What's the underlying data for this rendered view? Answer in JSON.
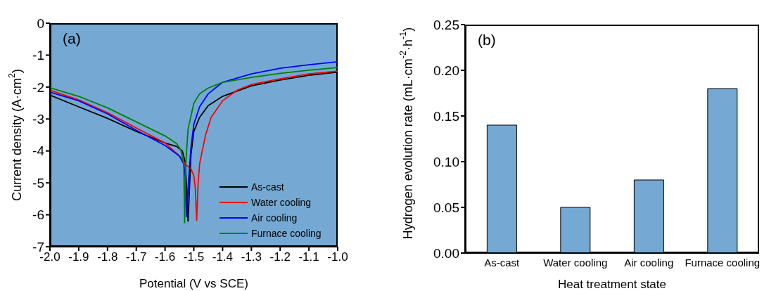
{
  "chart_data": [
    {
      "type": "line",
      "xlabel": "Potential (V vs SCE)",
      "ylabel": "Current density (A·cm$^{2}$)",
      "annotations": [
        "(a)"
      ],
      "xlim": [
        -2.0,
        -1.0
      ],
      "xticks": [
        {
          "value": -2.0,
          "label": "-2.0"
        },
        -1.9,
        -1.8,
        -1.7,
        -1.6,
        -1.5,
        -1.4,
        -1.3,
        -1.2,
        -1.1,
        {
          "value": -1.0,
          "label": "-1.0"
        }
      ],
      "ylim": [
        -7,
        0
      ],
      "yticks": [
        -7,
        -6,
        -5,
        -4,
        -3,
        -2,
        -1,
        0
      ],
      "grid": false,
      "legend": "bottom right",
      "marker": "none",
      "line_style": "solid",
      "series": [
        {
          "name": "As-cast",
          "color": "#000000",
          "x": [
            -2.0,
            -1.9,
            -1.8,
            -1.7,
            -1.6,
            -1.56,
            -1.54,
            -1.53,
            -1.525,
            -1.52,
            -1.515,
            -1.51,
            -1.5,
            -1.48,
            -1.45,
            -1.4,
            -1.3,
            -1.2,
            -1.1,
            -1.0
          ],
          "values": [
            -2.25,
            -2.62,
            -2.98,
            -3.39,
            -3.75,
            -3.86,
            -4.0,
            -4.34,
            -5.15,
            -6.2,
            -5.15,
            -4.12,
            -3.39,
            -2.95,
            -2.58,
            -2.29,
            -1.96,
            -1.78,
            -1.63,
            -1.53
          ]
        },
        {
          "name": "Water cooling",
          "color": "#ff0000",
          "x": [
            -2.0,
            -1.9,
            -1.8,
            -1.7,
            -1.6,
            -1.55,
            -1.53,
            -1.51,
            -1.5,
            -1.495,
            -1.49,
            -1.485,
            -1.48,
            -1.46,
            -1.44,
            -1.4,
            -1.35,
            -1.3,
            -1.2,
            -1.1,
            -1.0
          ],
          "values": [
            -2.1,
            -2.4,
            -2.8,
            -3.28,
            -3.75,
            -4.16,
            -4.41,
            -4.56,
            -4.78,
            -5.15,
            -6.17,
            -5.0,
            -4.41,
            -3.53,
            -2.95,
            -2.43,
            -2.1,
            -1.92,
            -1.74,
            -1.59,
            -1.5
          ]
        },
        {
          "name": "Air cooling",
          "color": "#0000ff",
          "x": [
            -2.0,
            -1.9,
            -1.8,
            -1.7,
            -1.6,
            -1.55,
            -1.535,
            -1.53,
            -1.525,
            -1.52,
            -1.51,
            -1.5,
            -1.48,
            -1.45,
            -1.4,
            -1.3,
            -1.2,
            -1.1,
            -1.0
          ],
          "values": [
            -2.16,
            -2.43,
            -2.84,
            -3.35,
            -3.83,
            -4.16,
            -4.41,
            -4.78,
            -6.06,
            -5.15,
            -3.9,
            -3.17,
            -2.62,
            -2.21,
            -1.85,
            -1.59,
            -1.41,
            -1.3,
            -1.21
          ]
        },
        {
          "name": "Furnace cooling",
          "color": "#008000",
          "x": [
            -2.0,
            -1.9,
            -1.8,
            -1.7,
            -1.6,
            -1.56,
            -1.545,
            -1.535,
            -1.532,
            -1.528,
            -1.52,
            -1.5,
            -1.48,
            -1.45,
            -1.4,
            -1.3,
            -1.2,
            -1.1,
            -1.0
          ],
          "values": [
            -2.02,
            -2.29,
            -2.65,
            -3.09,
            -3.53,
            -3.77,
            -3.97,
            -4.41,
            -6.25,
            -4.41,
            -3.31,
            -2.51,
            -2.21,
            -2.03,
            -1.85,
            -1.7,
            -1.57,
            -1.47,
            -1.39
          ]
        }
      ]
    },
    {
      "type": "bar",
      "xlabel": "Heat treatment state",
      "ylabel": "Hydrogen evolution rate (mL·cm$^{-2}$·h$^{-1}$)",
      "annotations": [
        "(b)"
      ],
      "categories": [
        "As-cast",
        "Water cooling",
        "Air cooling",
        "Furnace cooling"
      ],
      "values": [
        0.14,
        0.05,
        0.08,
        0.18
      ],
      "color": "#75a9d4",
      "ylim": [
        0,
        0.25
      ],
      "yticks": [
        {
          "value": 0,
          "label": "0.00"
        },
        0.05,
        {
          "value": 0.1,
          "label": "0.10"
        },
        0.15,
        {
          "value": 0.2,
          "label": "0.20"
        },
        0.25
      ],
      "grid": false,
      "legend": false
    }
  ]
}
